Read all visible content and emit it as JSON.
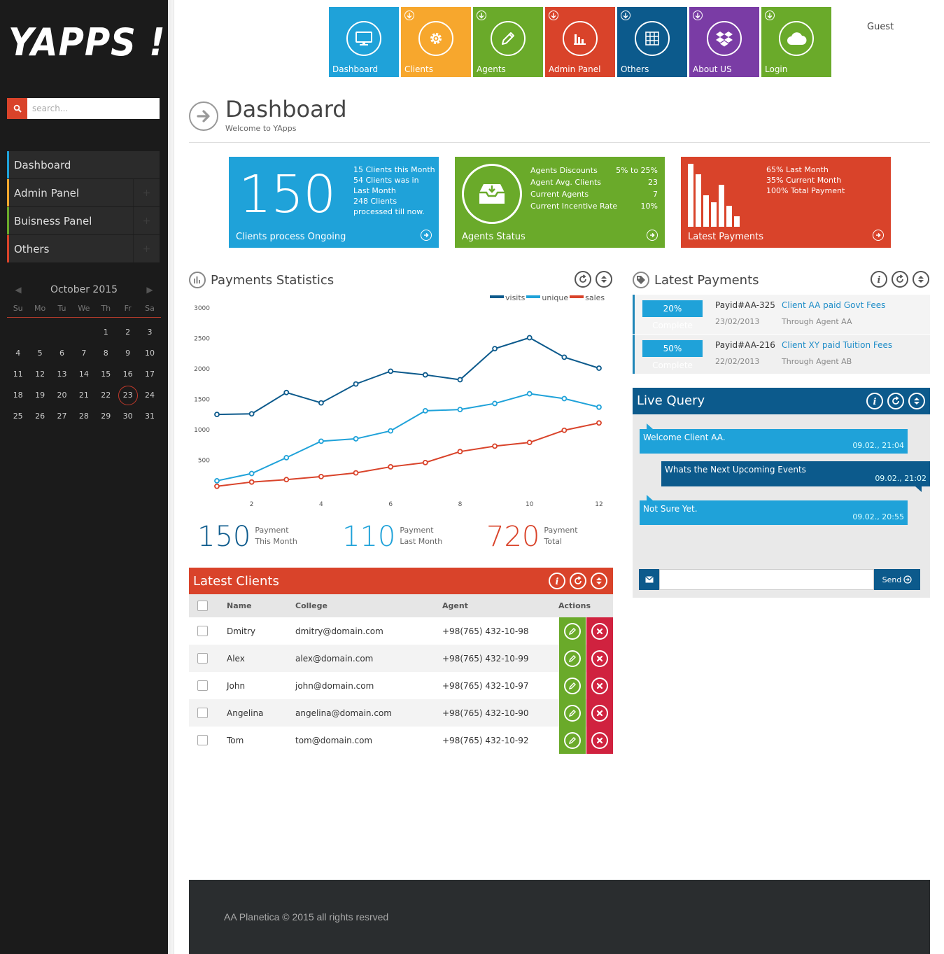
{
  "brand": {
    "logo": "YAPPS !!!"
  },
  "search": {
    "placeholder": "search..."
  },
  "sidebar": {
    "items": [
      {
        "label": "Dashboard",
        "color": "#1fa2d9"
      },
      {
        "label": "Admin Panel",
        "color": "#f7a72d"
      },
      {
        "label": "Buisness Panel",
        "color": "#6aaa2a"
      },
      {
        "label": "Others",
        "color": "#d9432a"
      }
    ]
  },
  "calendar": {
    "month": "October 2015",
    "dow": [
      "Su",
      "Mo",
      "Tu",
      "We",
      "Th",
      "Fr",
      "Sa"
    ],
    "weeks": [
      [
        "",
        "",
        "",
        "",
        "1",
        "2",
        "3"
      ],
      [
        "4",
        "5",
        "6",
        "7",
        "8",
        "9",
        "10"
      ],
      [
        "11",
        "12",
        "13",
        "14",
        "15",
        "16",
        "17"
      ],
      [
        "18",
        "19",
        "20",
        "21",
        "22",
        "23",
        "24"
      ],
      [
        "25",
        "26",
        "27",
        "28",
        "29",
        "30",
        "31"
      ]
    ],
    "today": "23"
  },
  "tiles": [
    {
      "label": "Dashboard",
      "color": "#1fa2d9",
      "icon": "monitor-icon",
      "download": false
    },
    {
      "label": "Clients",
      "color": "#f7a72d",
      "icon": "gear-icon",
      "download": true
    },
    {
      "label": "Agents",
      "color": "#6aaa2a",
      "icon": "pencil-icon",
      "download": true
    },
    {
      "label": "Admin Panel",
      "color": "#d9432a",
      "icon": "bar-chart-icon",
      "download": true
    },
    {
      "label": "Others",
      "color": "#0c5a8c",
      "icon": "grid-icon",
      "download": true
    },
    {
      "label": "About US",
      "color": "#7a3ca5",
      "icon": "dropbox-icon",
      "download": true
    },
    {
      "label": "Login",
      "color": "#6aaa2a",
      "icon": "cloud-icon",
      "download": true
    }
  ],
  "user": {
    "name": "Guest"
  },
  "page": {
    "title": "Dashboard",
    "subtitle": "Welcome to YApps"
  },
  "stats": {
    "clients": {
      "value": "150",
      "lines": [
        "15 Clients this Month",
        "54 Clients was in Last Month",
        "248 Clients processed till now."
      ],
      "footer": "Clients process Ongoing"
    },
    "agents": {
      "rows": [
        {
          "label": "Agents Discounts",
          "value": "5% to 25%"
        },
        {
          "label": "Agent Avg. Clients",
          "value": "23"
        },
        {
          "label": "Current Agents",
          "value": "7"
        },
        {
          "label": "Current Incentive Rate",
          "value": "10%"
        }
      ],
      "footer": "Agents Status"
    },
    "payments": {
      "lines": [
        "65% Last Month",
        "35% Current Month",
        "100% Total Payment"
      ],
      "footer": "Latest Payments",
      "bar_levels": [
        1.0,
        0.83,
        0.5,
        0.39,
        0.67,
        0.33,
        0.17
      ]
    }
  },
  "payments_panel": {
    "title": "Payments Statistics"
  },
  "chart_data": {
    "type": "line",
    "x": [
      1,
      2,
      3,
      4,
      5,
      6,
      7,
      8,
      9,
      10,
      11,
      12
    ],
    "xticks": [
      "2",
      "4",
      "6",
      "8",
      "10",
      "12"
    ],
    "yticks": [
      "500",
      "1000",
      "1500",
      "2000",
      "2500",
      "3000"
    ],
    "ylim": [
      0,
      3000
    ],
    "xlim": [
      1,
      12
    ],
    "legend": "top-right",
    "series": [
      {
        "name": "visits",
        "color": "#0c5a8c",
        "values": [
          1240,
          1250,
          1600,
          1430,
          1740,
          1950,
          1890,
          1810,
          2320,
          2500,
          2180,
          2000
        ]
      },
      {
        "name": "unique",
        "color": "#1fa2d9",
        "values": [
          150,
          270,
          530,
          800,
          840,
          970,
          1300,
          1320,
          1420,
          1580,
          1500,
          1360
        ]
      },
      {
        "name": "sales",
        "color": "#d9432a",
        "values": [
          60,
          130,
          170,
          220,
          280,
          380,
          450,
          630,
          720,
          780,
          980,
          1100
        ]
      }
    ]
  },
  "totals": [
    {
      "value": "150",
      "line1": "Payment",
      "line2": "This Month",
      "color": "#0c5a8c"
    },
    {
      "value": "110",
      "line1": "Payment",
      "line2": "Last Month",
      "color": "#1fa2d9"
    },
    {
      "value": "720",
      "line1": "Payment",
      "line2": "Total",
      "color": "#d9432a"
    }
  ],
  "latest_payments": {
    "title": "Latest Payments",
    "items": [
      {
        "badge": "20% Complete",
        "id": "Payid#AA-325",
        "date": "23/02/2013",
        "desc": "Client AA paid Govt Fees",
        "agent": "Through Agent AA"
      },
      {
        "badge": "50% Complete",
        "id": "Payid#AA-216",
        "date": "22/02/2013",
        "desc": "Client XY paid Tuition Fees",
        "agent": "Through Agent AB"
      }
    ]
  },
  "live_query": {
    "title": "Live Query",
    "messages": [
      {
        "text": "Welcome Client AA.",
        "time": "09.02., 21:04"
      },
      {
        "text": "Whats the Next Upcoming Events",
        "time": "09.02., 21:02"
      },
      {
        "text": "Not Sure Yet.",
        "time": "09.02., 20:55"
      }
    ],
    "input_value": "",
    "send_label": "Send"
  },
  "latest_clients": {
    "title": "Latest Clients",
    "columns": [
      "Name",
      "College",
      "Agent",
      "Actions"
    ],
    "rows": [
      {
        "name": "Dmitry",
        "college": "dmitry@domain.com",
        "agent": "+98(765) 432-10-98"
      },
      {
        "name": "Alex",
        "college": "alex@domain.com",
        "agent": "+98(765) 432-10-99"
      },
      {
        "name": "John",
        "college": "john@domain.com",
        "agent": "+98(765) 432-10-97"
      },
      {
        "name": "Angelina",
        "college": "angelina@domain.com",
        "agent": "+98(765) 432-10-90"
      },
      {
        "name": "Tom",
        "college": "tom@domain.com",
        "agent": "+98(765) 432-10-92"
      }
    ]
  },
  "footer": {
    "text": "AA Planetica © 2015 all rights resrved"
  }
}
